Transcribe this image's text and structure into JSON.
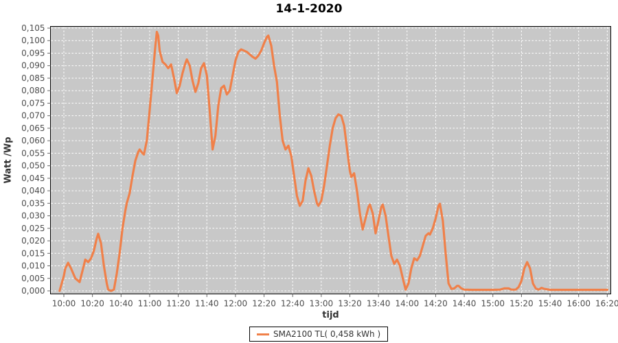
{
  "title": "14-1-2020",
  "legend": {
    "label": "SMA2100 TL( 0,458 kWh )"
  },
  "chart_data": {
    "type": "line",
    "title": "14-1-2020",
    "xlabel": "tijd",
    "ylabel": "Watt /Wp",
    "x_ticks": [
      "10:00",
      "10:20",
      "10:40",
      "11:00",
      "11:20",
      "11:40",
      "12:00",
      "12:20",
      "12:40",
      "13:00",
      "13:20",
      "13:40",
      "14:00",
      "14:20",
      "14:40",
      "15:00",
      "15:20",
      "15:40",
      "16:00",
      "16:20"
    ],
    "y_ticks": [
      "0,105",
      "0,100",
      "0,095",
      "0,090",
      "0,085",
      "0,080",
      "0,075",
      "0,070",
      "0,065",
      "0,060",
      "0,055",
      "0,050",
      "0,045",
      "0,040",
      "0,035",
      "0,030",
      "0,025",
      "0,020",
      "0,015",
      "0,010",
      "0,005",
      "0,000"
    ],
    "ylim": [
      0,
      0.105
    ],
    "y_step": 0.005,
    "xlim": [
      "09:50",
      "16:23"
    ],
    "grid": true,
    "legend_position": "bottom-center",
    "colors": {
      "plot_background": "#c8c8c8",
      "grid": "#ffffff",
      "series": "#f08049",
      "tick_label": "#4d4d4d",
      "axis_border": "#000000"
    },
    "series": [
      {
        "name": "SMA2100 TL( 0,458 kWh )",
        "color": "#f08049",
        "points": [
          [
            "09:57",
            0.0
          ],
          [
            "09:59",
            0.004
          ],
          [
            "10:00",
            0.006
          ],
          [
            "10:01",
            0.009
          ],
          [
            "10:03",
            0.0112
          ],
          [
            "10:05",
            0.009
          ],
          [
            "10:08",
            0.005
          ],
          [
            "10:11",
            0.0035
          ],
          [
            "10:13",
            0.008
          ],
          [
            "10:15",
            0.0125
          ],
          [
            "10:17",
            0.0115
          ],
          [
            "10:19",
            0.013
          ],
          [
            "10:21",
            0.016
          ],
          [
            "10:23",
            0.021
          ],
          [
            "10:24",
            0.0228
          ],
          [
            "10:26",
            0.019
          ],
          [
            "10:28",
            0.01
          ],
          [
            "10:30",
            0.003
          ],
          [
            "10:31",
            0.0005
          ],
          [
            "10:33",
            0.0
          ],
          [
            "10:35",
            0.0005
          ],
          [
            "10:37",
            0.007
          ],
          [
            "10:39",
            0.015
          ],
          [
            "10:41",
            0.025
          ],
          [
            "10:43",
            0.032
          ],
          [
            "10:44",
            0.035
          ],
          [
            "10:46",
            0.039
          ],
          [
            "10:48",
            0.046
          ],
          [
            "10:50",
            0.052
          ],
          [
            "10:52",
            0.0555
          ],
          [
            "10:53",
            0.0565
          ],
          [
            "10:55",
            0.055
          ],
          [
            "10:56",
            0.0545
          ],
          [
            "10:58",
            0.06
          ],
          [
            "11:00",
            0.072
          ],
          [
            "11:02",
            0.085
          ],
          [
            "11:04",
            0.098
          ],
          [
            "11:05",
            0.1035
          ],
          [
            "11:06",
            0.102
          ],
          [
            "11:07",
            0.096
          ],
          [
            "11:09",
            0.0915
          ],
          [
            "11:11",
            0.0905
          ],
          [
            "11:13",
            0.089
          ],
          [
            "11:15",
            0.0905
          ],
          [
            "11:17",
            0.085
          ],
          [
            "11:19",
            0.079
          ],
          [
            "11:21",
            0.082
          ],
          [
            "11:23",
            0.087
          ],
          [
            "11:25",
            0.091
          ],
          [
            "11:26",
            0.0925
          ],
          [
            "11:28",
            0.09
          ],
          [
            "11:30",
            0.084
          ],
          [
            "11:32",
            0.0795
          ],
          [
            "11:34",
            0.083
          ],
          [
            "11:36",
            0.089
          ],
          [
            "11:38",
            0.091
          ],
          [
            "11:40",
            0.086
          ],
          [
            "11:42",
            0.072
          ],
          [
            "11:44",
            0.0565
          ],
          [
            "11:46",
            0.062
          ],
          [
            "11:48",
            0.074
          ],
          [
            "11:50",
            0.081
          ],
          [
            "11:52",
            0.082
          ],
          [
            "11:54",
            0.0785
          ],
          [
            "11:56",
            0.08
          ],
          [
            "11:58",
            0.086
          ],
          [
            "12:00",
            0.092
          ],
          [
            "12:02",
            0.0955
          ],
          [
            "12:04",
            0.0965
          ],
          [
            "12:06",
            0.096
          ],
          [
            "12:08",
            0.0955
          ],
          [
            "12:10",
            0.0945
          ],
          [
            "12:12",
            0.0935
          ],
          [
            "12:14",
            0.0928
          ],
          [
            "12:16",
            0.094
          ],
          [
            "12:18",
            0.096
          ],
          [
            "12:20",
            0.099
          ],
          [
            "12:22",
            0.1015
          ],
          [
            "12:23",
            0.102
          ],
          [
            "12:25",
            0.098
          ],
          [
            "12:27",
            0.09
          ],
          [
            "12:29",
            0.0835
          ],
          [
            "12:31",
            0.07
          ],
          [
            "12:33",
            0.06
          ],
          [
            "12:35",
            0.0565
          ],
          [
            "12:37",
            0.058
          ],
          [
            "12:39",
            0.054
          ],
          [
            "12:41",
            0.046
          ],
          [
            "12:43",
            0.038
          ],
          [
            "12:45",
            0.034
          ],
          [
            "12:47",
            0.036
          ],
          [
            "12:49",
            0.044
          ],
          [
            "12:51",
            0.049
          ],
          [
            "12:53",
            0.046
          ],
          [
            "12:55",
            0.04
          ],
          [
            "12:57",
            0.035
          ],
          [
            "12:58",
            0.034
          ],
          [
            "13:00",
            0.036
          ],
          [
            "13:02",
            0.042
          ],
          [
            "13:04",
            0.05
          ],
          [
            "13:06",
            0.058
          ],
          [
            "13:08",
            0.065
          ],
          [
            "13:10",
            0.069
          ],
          [
            "13:12",
            0.0705
          ],
          [
            "13:14",
            0.07
          ],
          [
            "13:16",
            0.066
          ],
          [
            "13:18",
            0.057
          ],
          [
            "13:20",
            0.048
          ],
          [
            "13:21",
            0.0455
          ],
          [
            "13:23",
            0.047
          ],
          [
            "13:25",
            0.04
          ],
          [
            "13:27",
            0.031
          ],
          [
            "13:29",
            0.0245
          ],
          [
            "13:31",
            0.029
          ],
          [
            "13:33",
            0.0335
          ],
          [
            "13:34",
            0.0345
          ],
          [
            "13:36",
            0.031
          ],
          [
            "13:38",
            0.023
          ],
          [
            "13:40",
            0.028
          ],
          [
            "13:42",
            0.0335
          ],
          [
            "13:43",
            0.0345
          ],
          [
            "13:45",
            0.03
          ],
          [
            "13:47",
            0.022
          ],
          [
            "13:49",
            0.014
          ],
          [
            "13:51",
            0.0108
          ],
          [
            "13:53",
            0.0125
          ],
          [
            "13:55",
            0.01
          ],
          [
            "13:57",
            0.005
          ],
          [
            "13:59",
            0.0005
          ],
          [
            "14:01",
            0.003
          ],
          [
            "14:03",
            0.009
          ],
          [
            "14:05",
            0.013
          ],
          [
            "14:07",
            0.0122
          ],
          [
            "14:09",
            0.014
          ],
          [
            "14:11",
            0.018
          ],
          [
            "14:13",
            0.022
          ],
          [
            "14:15",
            0.023
          ],
          [
            "14:16",
            0.0225
          ],
          [
            "14:18",
            0.025
          ],
          [
            "14:20",
            0.029
          ],
          [
            "14:22",
            0.034
          ],
          [
            "14:23",
            0.0348
          ],
          [
            "14:25",
            0.028
          ],
          [
            "14:27",
            0.015
          ],
          [
            "14:29",
            0.003
          ],
          [
            "14:31",
            0.0008
          ],
          [
            "14:33",
            0.001
          ],
          [
            "14:35",
            0.002
          ],
          [
            "14:36",
            0.002
          ],
          [
            "14:38",
            0.001
          ],
          [
            "14:40",
            0.0005
          ],
          [
            "14:45",
            0.0004
          ],
          [
            "14:50",
            0.0004
          ],
          [
            "14:55",
            0.0004
          ],
          [
            "15:00",
            0.0004
          ],
          [
            "15:05",
            0.0005
          ],
          [
            "15:08",
            0.001
          ],
          [
            "15:11",
            0.001
          ],
          [
            "15:13",
            0.0005
          ],
          [
            "15:16",
            0.0005
          ],
          [
            "15:18",
            0.0015
          ],
          [
            "15:20",
            0.004
          ],
          [
            "15:22",
            0.009
          ],
          [
            "15:24",
            0.0115
          ],
          [
            "15:26",
            0.009
          ],
          [
            "15:28",
            0.003
          ],
          [
            "15:30",
            0.001
          ],
          [
            "15:32",
            0.0005
          ],
          [
            "15:34",
            0.0012
          ],
          [
            "15:36",
            0.0008
          ],
          [
            "15:40",
            0.0004
          ],
          [
            "15:50",
            0.0004
          ],
          [
            "16:00",
            0.0004
          ],
          [
            "16:10",
            0.0004
          ],
          [
            "16:20",
            0.0004
          ]
        ]
      }
    ]
  }
}
